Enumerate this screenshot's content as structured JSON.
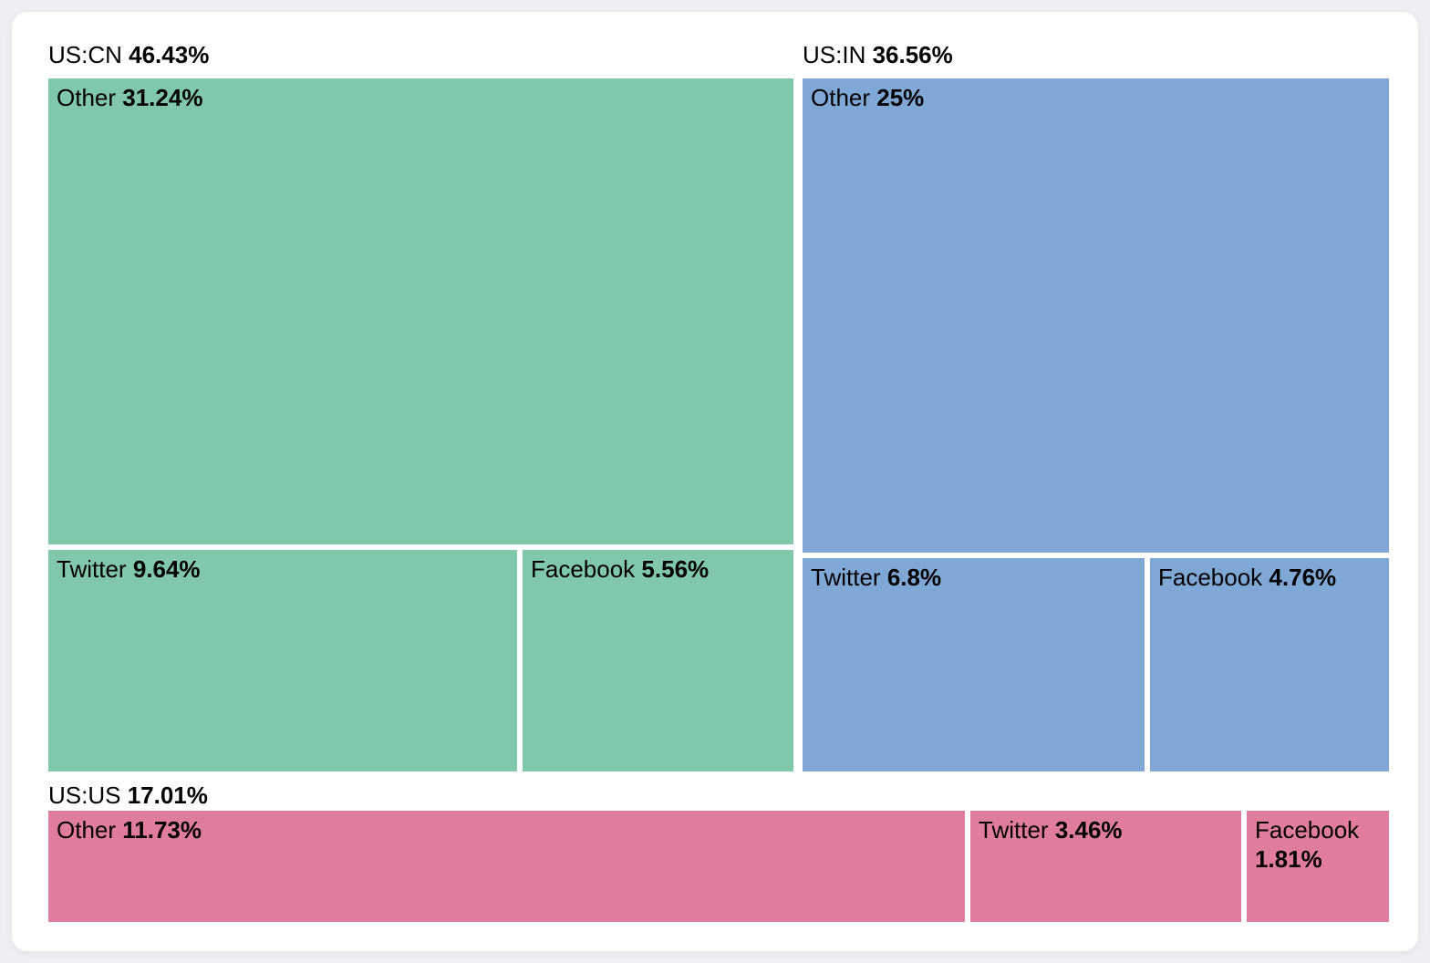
{
  "page": {
    "background_color": "#eef0f3",
    "card_background": "#ffffff",
    "text_color": "#000000"
  },
  "chart_data": {
    "type": "treemap",
    "title": "",
    "legend": "none",
    "layout_hint": "two groups on top row (US:CN left, US:IN right), US:US spans full width on bottom row; white gutters between cells; group label with percentage shown above each group",
    "groups": [
      {
        "label": "US:CN",
        "value_label": "46.43%",
        "value": 46.43,
        "color": "#81c7a9",
        "children": [
          {
            "label": "Other",
            "value_label": "31.24%",
            "value": 31.24
          },
          {
            "label": "Twitter",
            "value_label": "9.64%",
            "value": 9.64
          },
          {
            "label": "Facebook",
            "value_label": "5.56%",
            "value": 5.56
          }
        ]
      },
      {
        "label": "US:IN",
        "value_label": "36.56%",
        "value": 36.56,
        "color": "#80a8d6",
        "children": [
          {
            "label": "Other",
            "value_label": "25%",
            "value": 25.0
          },
          {
            "label": "Twitter",
            "value_label": "6.8%",
            "value": 6.8
          },
          {
            "label": "Facebook",
            "value_label": "4.76%",
            "value": 4.76
          }
        ]
      },
      {
        "label": "US:US",
        "value_label": "17.01%",
        "value": 17.01,
        "color": "#e07d9c",
        "children": [
          {
            "label": "Other",
            "value_label": "11.73%",
            "value": 11.73
          },
          {
            "label": "Twitter",
            "value_label": "3.46%",
            "value": 3.46
          },
          {
            "label": "Facebook",
            "value_label": "1.81%",
            "value": 1.81
          }
        ]
      }
    ]
  }
}
